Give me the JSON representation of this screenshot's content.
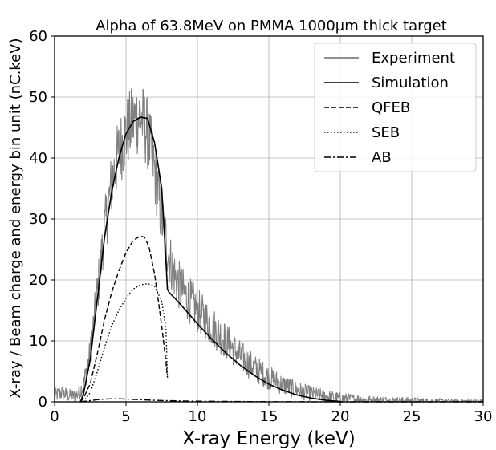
{
  "chart_data": {
    "type": "line",
    "title": "Alpha of 63.8MeV on PMMA 1000µm thick target",
    "xlabel": "X-ray Energy (keV)",
    "ylabel": "X-ray / Beam charge and energy bin unit (nC.keV)",
    "xlim": [
      0,
      30
    ],
    "ylim": [
      0,
      60
    ],
    "xticks": [
      0,
      5,
      10,
      15,
      20,
      25,
      30
    ],
    "yticks": [
      0,
      10,
      20,
      30,
      40,
      50,
      60
    ],
    "grid": true,
    "legend_position": "top-right",
    "colors": {
      "experiment": "#808080",
      "simulation": "#000000"
    },
    "series": [
      {
        "name": "Experiment",
        "style": "solid-gray-noisy",
        "x": [
          0.0,
          0.5,
          1.0,
          1.5,
          2.0,
          2.5,
          3.0,
          3.5,
          4.0,
          4.5,
          5.0,
          5.5,
          6.0,
          6.5,
          7.0,
          7.5,
          8.0,
          8.5,
          9.0,
          9.5,
          10.0,
          11.0,
          12.0,
          13.0,
          14.0,
          15.0,
          16.0,
          17.0,
          18.0,
          19.0,
          20.0,
          21.0,
          22.0,
          24.0,
          26.0,
          28.0,
          30.0
        ],
        "y": [
          1.0,
          1.5,
          1.0,
          1.0,
          2.5,
          8.0,
          18.0,
          28.0,
          36.0,
          41.0,
          44.0,
          46.0,
          47.0,
          44.0,
          38.0,
          30.0,
          24.0,
          20.0,
          18.0,
          16.5,
          15.0,
          12.5,
          10.0,
          7.5,
          5.5,
          4.0,
          2.8,
          1.9,
          1.3,
          0.9,
          0.6,
          0.45,
          0.3,
          0.2,
          0.1,
          0.05,
          0.05
        ]
      },
      {
        "name": "Simulation",
        "style": "solid",
        "x": [
          1.8,
          2.0,
          2.5,
          3.0,
          3.5,
          4.0,
          4.5,
          5.0,
          5.5,
          6.0,
          6.5,
          7.0,
          7.5,
          7.8,
          7.9,
          8.0,
          8.5,
          9.0,
          10.0,
          11.0,
          12.0,
          13.0,
          14.0,
          15.0,
          16.0,
          17.0,
          18.0,
          19.0,
          20.0
        ],
        "y": [
          0.0,
          1.0,
          7.0,
          17.0,
          27.0,
          34.5,
          40.0,
          44.0,
          46.0,
          46.7,
          46.5,
          42.5,
          35.0,
          23.0,
          18.5,
          18.0,
          16.8,
          15.5,
          12.8,
          10.3,
          8.0,
          6.0,
          4.3,
          2.9,
          1.9,
          1.1,
          0.6,
          0.25,
          0.05
        ]
      },
      {
        "name": "QFEB",
        "style": "dashed",
        "x": [
          1.8,
          2.0,
          2.5,
          3.0,
          3.5,
          4.0,
          4.5,
          5.0,
          5.5,
          6.0,
          6.3,
          6.6,
          7.0,
          7.3,
          7.6,
          7.8,
          7.9
        ],
        "y": [
          0.0,
          0.5,
          3.0,
          8.0,
          13.5,
          18.0,
          21.5,
          24.5,
          26.5,
          27.2,
          27.0,
          25.5,
          21.0,
          16.0,
          10.5,
          6.5,
          4.0
        ]
      },
      {
        "name": "SEB",
        "style": "dotted",
        "x": [
          2.0,
          2.5,
          3.0,
          3.5,
          4.0,
          4.5,
          5.0,
          5.5,
          6.0,
          6.5,
          7.0,
          7.5,
          7.8,
          7.9
        ],
        "y": [
          0.0,
          1.5,
          5.0,
          9.0,
          12.5,
          15.0,
          17.0,
          18.5,
          19.2,
          19.4,
          19.0,
          16.5,
          12.0,
          4.0
        ]
      },
      {
        "name": "AB",
        "style": "dashdot",
        "x": [
          1.8,
          2.5,
          3.0,
          3.5,
          4.0,
          4.5,
          5.0,
          6.0,
          7.0,
          8.0,
          10.0,
          12.0,
          14.0,
          16.0,
          18.0,
          20.0,
          25.0,
          30.0
        ],
        "y": [
          0.0,
          0.2,
          0.35,
          0.45,
          0.5,
          0.5,
          0.45,
          0.35,
          0.25,
          0.18,
          0.1,
          0.06,
          0.04,
          0.02,
          0.01,
          0.0,
          0.0,
          0.0
        ]
      }
    ]
  }
}
